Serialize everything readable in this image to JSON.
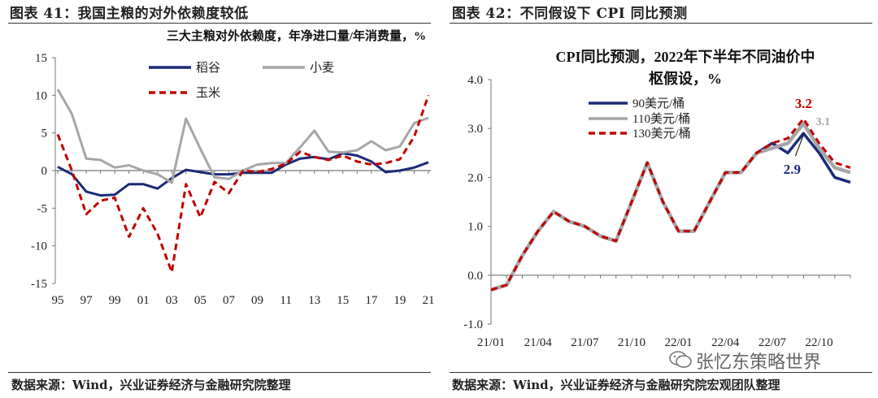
{
  "left_panel": {
    "title": "图表 41：我国主粮的对外依赖度较低",
    "source": "数据来源：Wind，兴业证券经济与金融研究院整理"
  },
  "right_panel": {
    "title": "图表 42：不同假设下 CPI 同比预测",
    "source": "数据来源：Wind，兴业证券经济与金融研究院宏观团队整理"
  },
  "watermark": {
    "text": "张忆东策略世界",
    "icon": "wechat-icon"
  },
  "colors": {
    "navy": "#1b2a78",
    "gray": "#a6a6a6",
    "red": "#c00000"
  },
  "chart_data": [
    {
      "type": "line",
      "title": "三大主粮对外依赖度，年净进口量/年消费量，%",
      "x": [
        95,
        96,
        97,
        98,
        99,
        "00",
        "01",
        "02",
        "03",
        "04",
        "05",
        "06",
        "07",
        "08",
        "09",
        10,
        11,
        12,
        13,
        14,
        15,
        16,
        17,
        18,
        19,
        20,
        21
      ],
      "x_tick_labels": [
        "95",
        "97",
        "99",
        "01",
        "03",
        "05",
        "07",
        "09",
        "11",
        "13",
        "15",
        "17",
        "19",
        "21"
      ],
      "ylim": [
        -15,
        15
      ],
      "y_ticks": [
        -15,
        -10,
        -5,
        0,
        5,
        10,
        15
      ],
      "legend_position": "top",
      "series": [
        {
          "name": "稻谷",
          "color": "#1b2a78",
          "dash": "solid",
          "values": [
            0.5,
            -0.5,
            -2.8,
            -3.3,
            -3.2,
            -1.8,
            -1.8,
            -2.4,
            -1.0,
            0.1,
            -0.2,
            -0.5,
            -0.5,
            -0.3,
            -0.3,
            -0.3,
            0.8,
            1.6,
            1.8,
            1.5,
            2.3,
            2.0,
            1.2,
            -0.2,
            0.0,
            0.4,
            1.1
          ]
        },
        {
          "name": "小麦",
          "color": "#a6a6a6",
          "dash": "solid",
          "values": [
            10.8,
            7.5,
            1.6,
            1.4,
            0.4,
            0.7,
            0.0,
            -0.5,
            -1.6,
            6.9,
            2.9,
            -0.9,
            -1.1,
            0.0,
            0.8,
            1.0,
            1.0,
            3.1,
            5.3,
            2.5,
            2.4,
            2.7,
            3.9,
            2.7,
            3.2,
            6.3,
            7.0
          ]
        },
        {
          "name": "玉米",
          "color": "#c00000",
          "dash": "dashed",
          "values": [
            4.8,
            0.0,
            -5.8,
            -4.0,
            -3.6,
            -8.8,
            -5.0,
            -8.4,
            -13.5,
            -1.8,
            -6.2,
            -1.5,
            -3.0,
            0.0,
            -0.2,
            0.2,
            0.9,
            2.5,
            1.8,
            1.4,
            2.0,
            1.2,
            0.8,
            1.0,
            1.5,
            4.5,
            10.0
          ]
        }
      ]
    },
    {
      "type": "line",
      "title": "CPI同比预测，2022年下半年不同油价中枢假设，%",
      "x": [
        "21/01",
        "21/02",
        "21/03",
        "21/04",
        "21/05",
        "21/06",
        "21/07",
        "21/08",
        "21/09",
        "21/10",
        "21/11",
        "21/12",
        "22/01",
        "22/02",
        "22/03",
        "22/04",
        "22/05",
        "22/06",
        "22/07",
        "22/08",
        "22/09",
        "22/10",
        "22/11",
        "22/12"
      ],
      "x_tick_labels": [
        "21/01",
        "21/04",
        "21/07",
        "21/10",
        "22/01",
        "22/04",
        "22/07",
        "22/10"
      ],
      "ylim": [
        -1.0,
        4.0
      ],
      "y_ticks": [
        -1.0,
        0.0,
        1.0,
        2.0,
        3.0,
        4.0
      ],
      "legend_position": "top-left",
      "series": [
        {
          "name": "90美元/桶",
          "color": "#1b2a78",
          "dash": "solid",
          "values": [
            -0.3,
            -0.2,
            0.4,
            0.9,
            1.3,
            1.1,
            1.0,
            0.8,
            0.7,
            1.5,
            2.3,
            1.5,
            0.9,
            0.9,
            1.5,
            2.1,
            2.1,
            2.5,
            2.7,
            2.5,
            2.9,
            2.5,
            2.0,
            1.9
          ]
        },
        {
          "name": "110美元/桶",
          "color": "#a6a6a6",
          "dash": "solid",
          "values": [
            -0.3,
            -0.2,
            0.4,
            0.9,
            1.3,
            1.1,
            1.0,
            0.8,
            0.7,
            1.5,
            2.3,
            1.5,
            0.9,
            0.9,
            1.5,
            2.1,
            2.1,
            2.5,
            2.6,
            2.7,
            3.1,
            2.6,
            2.2,
            2.1
          ]
        },
        {
          "name": "130美元/桶",
          "color": "#c00000",
          "dash": "dashed",
          "values": [
            -0.3,
            -0.2,
            0.4,
            0.9,
            1.3,
            1.1,
            1.0,
            0.8,
            0.7,
            1.5,
            2.3,
            1.5,
            0.9,
            0.9,
            1.5,
            2.1,
            2.1,
            2.5,
            2.7,
            2.8,
            3.2,
            2.7,
            2.3,
            2.2
          ]
        }
      ],
      "annotations": [
        {
          "text": "3.2",
          "color": "#c00000"
        },
        {
          "text": "3.1",
          "color": "#a6a6a6"
        },
        {
          "text": "2.9",
          "color": "#1b2a78"
        }
      ]
    }
  ]
}
